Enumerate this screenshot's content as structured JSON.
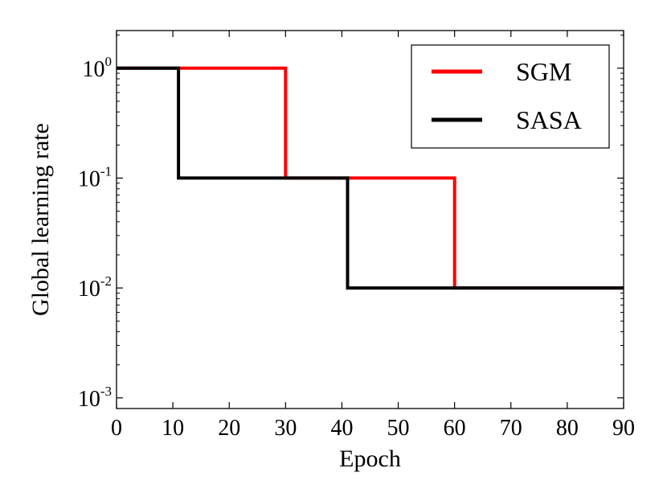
{
  "chart_data": {
    "type": "line",
    "title": "",
    "xlabel": "Epoch",
    "ylabel": "Global learning rate",
    "xlim": [
      0,
      90
    ],
    "ylim": [
      0.0008,
      2.2
    ],
    "yscale": "log",
    "x_ticks": [
      0,
      10,
      20,
      30,
      40,
      50,
      60,
      70,
      80,
      90
    ],
    "y_ticks": [
      {
        "value": 1,
        "base": "10",
        "exp": "0"
      },
      {
        "value": 0.1,
        "base": "10",
        "exp": "-1"
      },
      {
        "value": 0.01,
        "base": "10",
        "exp": "-2"
      },
      {
        "value": 0.001,
        "base": "10",
        "exp": "-3"
      }
    ],
    "grid": false,
    "legend_position": "top-right",
    "series": [
      {
        "name": "SGM",
        "color": "#ff0000",
        "points": [
          [
            0,
            1
          ],
          [
            30,
            1
          ],
          [
            30,
            0.1
          ],
          [
            60,
            0.1
          ],
          [
            60,
            0.01
          ],
          [
            90,
            0.01
          ]
        ]
      },
      {
        "name": "SASA",
        "color": "#000000",
        "points": [
          [
            0,
            1
          ],
          [
            11,
            1
          ],
          [
            11,
            0.1
          ],
          [
            41,
            0.1
          ],
          [
            41,
            0.01
          ],
          [
            90,
            0.01
          ]
        ]
      }
    ]
  }
}
